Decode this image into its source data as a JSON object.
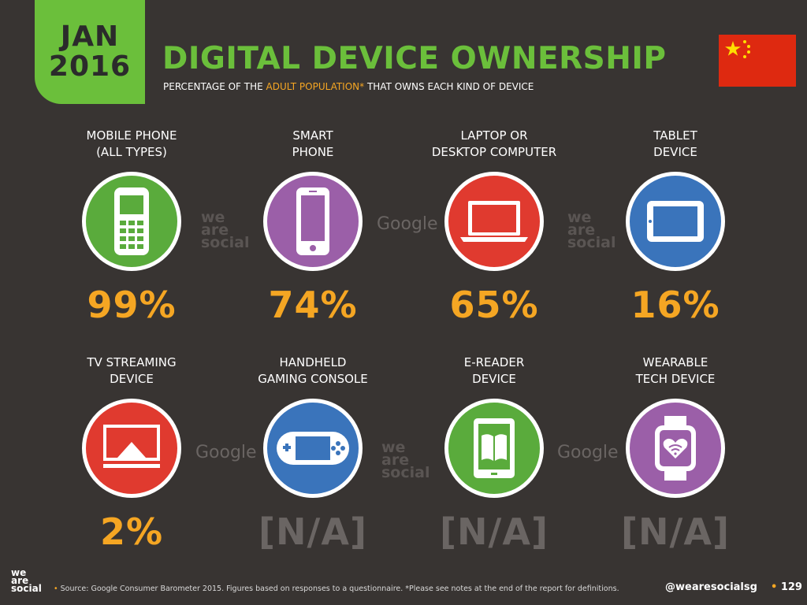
{
  "header": {
    "month": "JAN",
    "year": "2016",
    "title": "DIGITAL DEVICE OWNERSHIP",
    "subtitle_pre": "PERCENTAGE OF THE ",
    "subtitle_highlight": "ADULT POPULATION*",
    "subtitle_post": " THAT OWNS EACH KIND OF DEVICE",
    "flag": "china-flag"
  },
  "colors": {
    "background": "#383432",
    "brand_green": "#6bbf3b",
    "orange": "#f5a623",
    "gray_value": "#6a6563",
    "green": "#5aab3c",
    "purple": "#9b5fa8",
    "red": "#e03a2f",
    "blue": "#3a74bb"
  },
  "devices": [
    {
      "label_line1": "MOBILE PHONE",
      "label_line2": "(ALL TYPES)",
      "value": "99%",
      "icon": "mobile-phone-icon",
      "color": "#5aab3c"
    },
    {
      "label_line1": "SMART",
      "label_line2": "PHONE",
      "value": "74%",
      "icon": "smartphone-icon",
      "color": "#9b5fa8"
    },
    {
      "label_line1": "LAPTOP OR",
      "label_line2": "DESKTOP COMPUTER",
      "value": "65%",
      "icon": "laptop-icon",
      "color": "#e03a2f"
    },
    {
      "label_line1": "TABLET",
      "label_line2": "DEVICE",
      "value": "16%",
      "icon": "tablet-icon",
      "color": "#3a74bb"
    },
    {
      "label_line1": "TV STREAMING",
      "label_line2": "DEVICE",
      "value": "2%",
      "icon": "tv-streaming-icon",
      "color": "#e03a2f"
    },
    {
      "label_line1": "HANDHELD",
      "label_line2": "GAMING CONSOLE",
      "value": "[N/A]",
      "icon": "gaming-console-icon",
      "color": "#3a74bb"
    },
    {
      "label_line1": "E-READER",
      "label_line2": "DEVICE",
      "value": "[N/A]",
      "icon": "ereader-icon",
      "color": "#5aab3c"
    },
    {
      "label_line1": "WEARABLE",
      "label_line2": "TECH DEVICE",
      "value": "[N/A]",
      "icon": "wearable-icon",
      "color": "#9b5fa8"
    }
  ],
  "watermarks": {
    "we_are_social": [
      "we",
      "are",
      "social"
    ],
    "google": "Google"
  },
  "footer": {
    "logo": [
      "we",
      "are",
      "social"
    ],
    "source": "Source: Google Consumer Barometer 2015. Figures based on responses to a questionnaire. *Please see notes at the end of the report for definitions.",
    "handle": "@wearesocialsg",
    "page": "129"
  }
}
